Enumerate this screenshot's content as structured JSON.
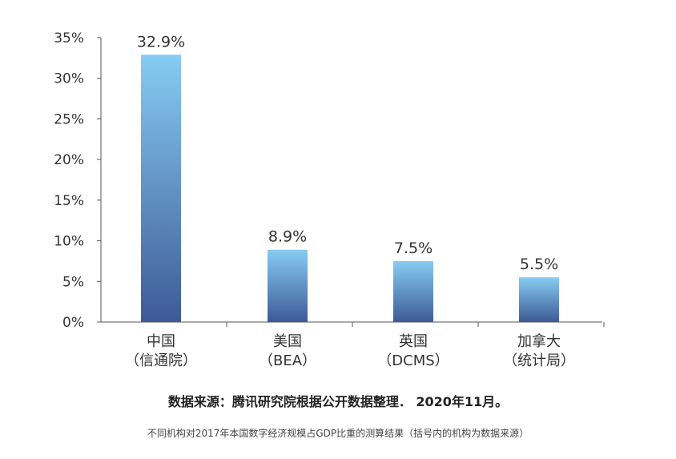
{
  "chart_data": {
    "type": "bar",
    "categories": [
      [
        "中国",
        "（信通院）"
      ],
      [
        "美国",
        "（BEA）"
      ],
      [
        "英国",
        "（DCMS）"
      ],
      [
        "加拿大",
        "（统计局）"
      ]
    ],
    "values": [
      32.9,
      8.9,
      7.5,
      5.5
    ],
    "data_labels": [
      "32.9%",
      "8.9%",
      "7.5%",
      "5.5%"
    ],
    "ylim": [
      0,
      35
    ],
    "yticks": [
      0,
      5,
      10,
      15,
      20,
      25,
      30,
      35
    ],
    "ytick_labels": [
      "0%",
      "5%",
      "10%",
      "15%",
      "20%",
      "25%",
      "30%",
      "35%"
    ],
    "grid": false,
    "bar_gradient": [
      "#86ccf2",
      "#3e5a96"
    ],
    "axis_color": "#555555"
  },
  "source_text": "数据来源：腾讯研究院根据公开数据整理． 2020年11月。",
  "note_text": "不同机构对2017年本国数字经济规模占GDP比重的测算结果（括号内的机构为数据来源）"
}
